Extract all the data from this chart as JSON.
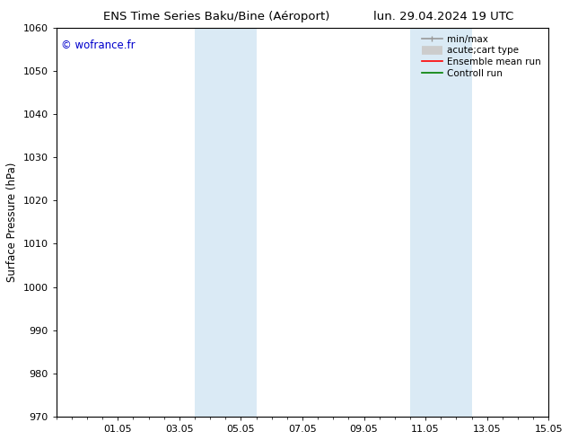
{
  "title_left": "ENS Time Series Baku/Bine (Aéroport)",
  "title_right": "lun. 29.04.2024 19 UTC",
  "ylabel": "Surface Pressure (hPa)",
  "ylim": [
    970,
    1060
  ],
  "yticks": [
    970,
    980,
    990,
    1000,
    1010,
    1020,
    1030,
    1040,
    1050,
    1060
  ],
  "xlim": [
    0.0,
    16.0
  ],
  "xtick_labels": [
    "01.05",
    "03.05",
    "05.05",
    "07.05",
    "09.05",
    "11.05",
    "13.05",
    "15.05"
  ],
  "xtick_positions": [
    2,
    4,
    6,
    8,
    10,
    12,
    14,
    16
  ],
  "shaded_bands": [
    {
      "x_start": 4.5,
      "x_end": 6.5
    },
    {
      "x_start": 11.5,
      "x_end": 13.5
    }
  ],
  "shaded_color": "#daeaf5",
  "watermark_text": "© wofrance.fr",
  "watermark_color": "#0000cc",
  "legend_entries": [
    {
      "label": "min/max",
      "color": "#999999",
      "lw": 1.2
    },
    {
      "label": "acute;cart type",
      "color": "#cccccc",
      "lw": 7
    },
    {
      "label": "Ensemble mean run",
      "color": "#ff0000",
      "lw": 1.2
    },
    {
      "label": "Controll run",
      "color": "#008000",
      "lw": 1.2
    }
  ],
  "background_color": "#ffffff",
  "spine_color": "#000000"
}
